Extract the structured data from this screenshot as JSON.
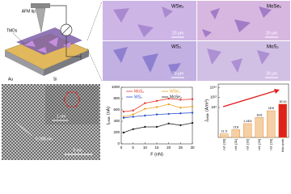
{
  "schematic": {
    "tip": "AFM tip",
    "tmds": "TMDs",
    "au": "Au",
    "si": "Si"
  },
  "micrographs": {
    "panels": [
      {
        "label": "WSe₂",
        "scale": "20 μm"
      },
      {
        "label": "MoSe₂",
        "scale": "20 μm"
      },
      {
        "label": "WS₂",
        "scale": "20 μm"
      },
      {
        "label": "MoS₂",
        "scale": "20 μm"
      }
    ]
  },
  "stem": {
    "spacing": "0.280 nm",
    "inset_scale": "1 nm",
    "scale": "5 nm"
  },
  "chart_data": [
    {
      "type": "line",
      "x_label": "F (nN)",
      "y_label": "Iₚₑₐₖ (nA)",
      "x": [
        1,
        5,
        10,
        15,
        20,
        25,
        30
      ],
      "series": [
        {
          "name": "MoS₂",
          "color": "#e8352b",
          "values": [
            570,
            590,
            720,
            760,
            800,
            780,
            790
          ]
        },
        {
          "name": "WSe₂",
          "color": "#f0a020",
          "values": [
            480,
            520,
            620,
            650,
            700,
            640,
            660
          ]
        },
        {
          "name": "WS₂",
          "color": "#2a4fc8",
          "values": [
            460,
            480,
            500,
            520,
            530,
            540,
            550
          ]
        },
        {
          "name": "MoSe₂",
          "color": "#222222",
          "values": [
            200,
            260,
            300,
            300,
            360,
            330,
            370
          ]
        }
      ],
      "xlim": [
        0,
        30
      ],
      "xticks": [
        0,
        5,
        10,
        15,
        20,
        25,
        30
      ],
      "ylim": [
        0,
        1000
      ],
      "yticks": [
        0,
        200,
        400,
        600,
        800,
        1000
      ],
      "grid": false
    },
    {
      "type": "bar",
      "y_label": "Jₚₑₐₖ (A/m²)",
      "log": true,
      "categories": [
        "ref. [30]",
        "ref. [31]",
        "ref. [32]",
        "ref. [29]",
        "ref. [33]",
        "this work"
      ],
      "values": [
        11.5,
        218,
        14000,
        1000000,
        100000000,
        10000000000
      ],
      "value_labels": [
        "11.5",
        "218",
        "1.4E4",
        "1E6",
        "1E8",
        "1E10"
      ],
      "colors": [
        "#f6cfa4",
        "#f6cfa4",
        "#f6cfa4",
        "#f6cfa4",
        "#f6cfa4",
        "#e0211b"
      ],
      "ylim": [
        1,
        10000000000000000
      ],
      "yticks": [
        {
          "value": 1000000000,
          "label": "10⁹"
        },
        {
          "value": 1000000000000,
          "label": "10¹²"
        },
        {
          "value": 1000000000000000,
          "label": "10¹⁵"
        }
      ]
    }
  ]
}
